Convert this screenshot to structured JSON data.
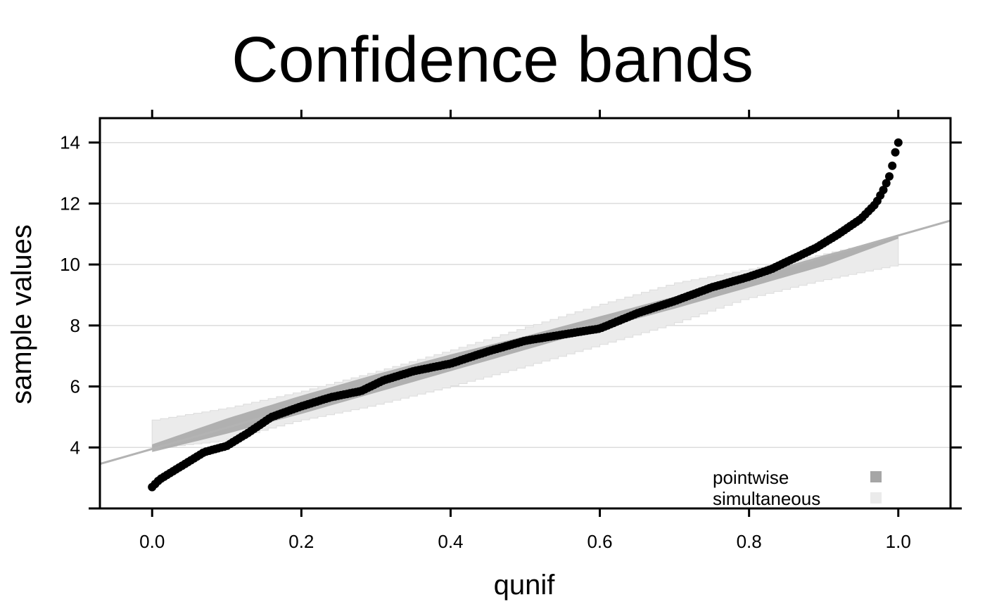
{
  "chart_data": {
    "type": "scatter",
    "title": "Confidence bands",
    "xlabel": "qunif",
    "ylabel": "sample values",
    "xlim": [
      -0.07,
      1.07
    ],
    "ylim": [
      2.0,
      14.8
    ],
    "x_ticks": [
      0.0,
      0.2,
      0.4,
      0.6,
      0.8,
      1.0
    ],
    "x_tick_labels": [
      "0.0",
      "0.2",
      "0.4",
      "0.6",
      "0.8",
      "1.0"
    ],
    "y_ticks": [
      4,
      6,
      8,
      10,
      12,
      14
    ],
    "y_tick_labels": [
      "4",
      "6",
      "8",
      "10",
      "12",
      "14"
    ],
    "grid": "horizontal",
    "reference_line": {
      "intercept": 3.95,
      "slope": 7.0,
      "color": "#b3b3b3"
    },
    "points": {
      "n": 250,
      "color": "#000000",
      "quantile_curve": [
        [
          0.0,
          2.7
        ],
        [
          0.01,
          2.95
        ],
        [
          0.03,
          3.25
        ],
        [
          0.05,
          3.55
        ],
        [
          0.07,
          3.85
        ],
        [
          0.1,
          4.05
        ],
        [
          0.13,
          4.5
        ],
        [
          0.16,
          5.0
        ],
        [
          0.2,
          5.35
        ],
        [
          0.24,
          5.65
        ],
        [
          0.28,
          5.85
        ],
        [
          0.31,
          6.2
        ],
        [
          0.35,
          6.5
        ],
        [
          0.4,
          6.75
        ],
        [
          0.45,
          7.15
        ],
        [
          0.5,
          7.5
        ],
        [
          0.55,
          7.7
        ],
        [
          0.6,
          7.9
        ],
        [
          0.65,
          8.4
        ],
        [
          0.7,
          8.8
        ],
        [
          0.75,
          9.25
        ],
        [
          0.8,
          9.6
        ],
        [
          0.83,
          9.85
        ],
        [
          0.86,
          10.2
        ],
        [
          0.89,
          10.55
        ],
        [
          0.92,
          11.0
        ],
        [
          0.95,
          11.5
        ],
        [
          0.97,
          12.0
        ],
        [
          0.98,
          12.45
        ],
        [
          0.99,
          13.0
        ],
        [
          0.995,
          13.6
        ],
        [
          1.0,
          14.0
        ]
      ]
    },
    "bands": {
      "pointwise": {
        "color": "#a6a6a6",
        "upper": [
          [
            0.0,
            4.1
          ],
          [
            0.1,
            4.95
          ],
          [
            0.2,
            5.7
          ],
          [
            0.3,
            6.4
          ],
          [
            0.4,
            7.05
          ],
          [
            0.5,
            7.65
          ],
          [
            0.6,
            8.3
          ],
          [
            0.7,
            8.95
          ],
          [
            0.8,
            9.6
          ],
          [
            0.9,
            10.3
          ],
          [
            1.0,
            10.95
          ]
        ],
        "lower": [
          [
            0.0,
            3.85
          ],
          [
            0.1,
            4.45
          ],
          [
            0.2,
            5.1
          ],
          [
            0.3,
            5.8
          ],
          [
            0.4,
            6.5
          ],
          [
            0.5,
            7.2
          ],
          [
            0.6,
            7.9
          ],
          [
            0.7,
            8.55
          ],
          [
            0.8,
            9.25
          ],
          [
            0.9,
            9.95
          ],
          [
            1.0,
            10.85
          ]
        ]
      },
      "simultaneous": {
        "color": "#ebebeb",
        "upper": [
          [
            0.0,
            4.9
          ],
          [
            0.1,
            5.3
          ],
          [
            0.2,
            5.85
          ],
          [
            0.3,
            6.5
          ],
          [
            0.4,
            7.2
          ],
          [
            0.5,
            7.95
          ],
          [
            0.6,
            8.7
          ],
          [
            0.7,
            9.4
          ],
          [
            0.8,
            9.85
          ],
          [
            0.9,
            10.35
          ],
          [
            1.0,
            10.9
          ]
        ],
        "lower": [
          [
            0.0,
            3.95
          ],
          [
            0.1,
            4.2
          ],
          [
            0.2,
            4.85
          ],
          [
            0.3,
            5.35
          ],
          [
            0.4,
            5.95
          ],
          [
            0.5,
            6.6
          ],
          [
            0.6,
            7.3
          ],
          [
            0.7,
            8.0
          ],
          [
            0.8,
            8.85
          ],
          [
            0.9,
            9.45
          ],
          [
            1.0,
            9.95
          ]
        ]
      }
    },
    "legend": {
      "position": "bottom-right",
      "entries": [
        {
          "label": "pointwise",
          "color": "#a6a6a6"
        },
        {
          "label": "simultaneous",
          "color": "#ebebeb"
        }
      ]
    }
  }
}
